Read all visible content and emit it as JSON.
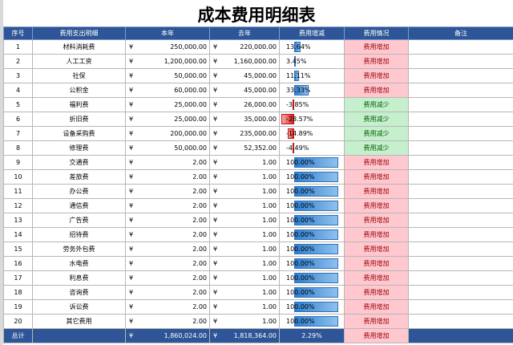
{
  "title": "成本费用明细表",
  "currency_symbol": "¥",
  "headers": [
    "序号",
    "费用支出明细",
    "本年",
    "去年",
    "费用增减",
    "费用情况",
    "备注"
  ],
  "rows": [
    {
      "no": "1",
      "item": "材料消耗费",
      "this_year": "250,000.00",
      "last_year": "220,000.00",
      "change": "13.64%",
      "change_value": 0.1364,
      "status": "费用增加",
      "note": ""
    },
    {
      "no": "2",
      "item": "人工工资",
      "this_year": "1,200,000.00",
      "last_year": "1,160,000.00",
      "change": "3.45%",
      "change_value": 0.0345,
      "status": "费用增加",
      "note": ""
    },
    {
      "no": "3",
      "item": "社保",
      "this_year": "50,000.00",
      "last_year": "45,000.00",
      "change": "11.11%",
      "change_value": 0.1111,
      "status": "费用增加",
      "note": ""
    },
    {
      "no": "4",
      "item": "公积金",
      "this_year": "60,000.00",
      "last_year": "45,000.00",
      "change": "33.33%",
      "change_value": 0.3333,
      "status": "费用增加",
      "note": ""
    },
    {
      "no": "5",
      "item": "福利费",
      "this_year": "25,000.00",
      "last_year": "26,000.00",
      "change": "-3.85%",
      "change_value": -0.0385,
      "status": "费用减少",
      "note": ""
    },
    {
      "no": "6",
      "item": "折旧费",
      "this_year": "25,000.00",
      "last_year": "35,000.00",
      "change": "-28.57%",
      "change_value": -0.2857,
      "status": "费用减少",
      "note": ""
    },
    {
      "no": "7",
      "item": "设备采购费",
      "this_year": "200,000.00",
      "last_year": "235,000.00",
      "change": "-14.89%",
      "change_value": -0.1489,
      "status": "费用减少",
      "note": ""
    },
    {
      "no": "8",
      "item": "修理费",
      "this_year": "50,000.00",
      "last_year": "52,352.00",
      "change": "-4.49%",
      "change_value": -0.0449,
      "status": "费用减少",
      "note": ""
    },
    {
      "no": "9",
      "item": "交通费",
      "this_year": "2.00",
      "last_year": "1.00",
      "change": "100.00%",
      "change_value": 1.0,
      "status": "费用增加",
      "note": ""
    },
    {
      "no": "10",
      "item": "差旅费",
      "this_year": "2.00",
      "last_year": "1.00",
      "change": "100.00%",
      "change_value": 1.0,
      "status": "费用增加",
      "note": ""
    },
    {
      "no": "11",
      "item": "办公费",
      "this_year": "2.00",
      "last_year": "1.00",
      "change": "100.00%",
      "change_value": 1.0,
      "status": "费用增加",
      "note": ""
    },
    {
      "no": "12",
      "item": "通信费",
      "this_year": "2.00",
      "last_year": "1.00",
      "change": "100.00%",
      "change_value": 1.0,
      "status": "费用增加",
      "note": ""
    },
    {
      "no": "13",
      "item": "广告费",
      "this_year": "2.00",
      "last_year": "1.00",
      "change": "100.00%",
      "change_value": 1.0,
      "status": "费用增加",
      "note": ""
    },
    {
      "no": "14",
      "item": "招待费",
      "this_year": "2.00",
      "last_year": "1.00",
      "change": "100.00%",
      "change_value": 1.0,
      "status": "费用增加",
      "note": ""
    },
    {
      "no": "15",
      "item": "劳务外包费",
      "this_year": "2.00",
      "last_year": "1.00",
      "change": "100.00%",
      "change_value": 1.0,
      "status": "费用增加",
      "note": ""
    },
    {
      "no": "16",
      "item": "水电费",
      "this_year": "2.00",
      "last_year": "1.00",
      "change": "100.00%",
      "change_value": 1.0,
      "status": "费用增加",
      "note": ""
    },
    {
      "no": "17",
      "item": "利息费",
      "this_year": "2.00",
      "last_year": "1.00",
      "change": "100.00%",
      "change_value": 1.0,
      "status": "费用增加",
      "note": ""
    },
    {
      "no": "18",
      "item": "咨询费",
      "this_year": "2.00",
      "last_year": "1.00",
      "change": "100.00%",
      "change_value": 1.0,
      "status": "费用增加",
      "note": ""
    },
    {
      "no": "19",
      "item": "诉讼费",
      "this_year": "2.00",
      "last_year": "1.00",
      "change": "100.00%",
      "change_value": 1.0,
      "status": "费用增加",
      "note": ""
    },
    {
      "no": "20",
      "item": "其它费用",
      "this_year": "2.00",
      "last_year": "1.00",
      "change": "100.00%",
      "change_value": 1.0,
      "status": "费用增加",
      "note": ""
    }
  ],
  "total": {
    "label": "总计",
    "this_year": "1,860,024.00",
    "last_year": "1,818,364.00",
    "change": "2.29%",
    "status": "费用增加",
    "note": ""
  },
  "colors": {
    "header_bg": "#2e5597",
    "increase_bg": "#ffc7ce",
    "increase_text": "#9c0006",
    "decrease_bg": "#c6efce",
    "decrease_text": "#006100",
    "bar_positive": "#2f7fd0",
    "bar_negative": "#d91e1e"
  }
}
